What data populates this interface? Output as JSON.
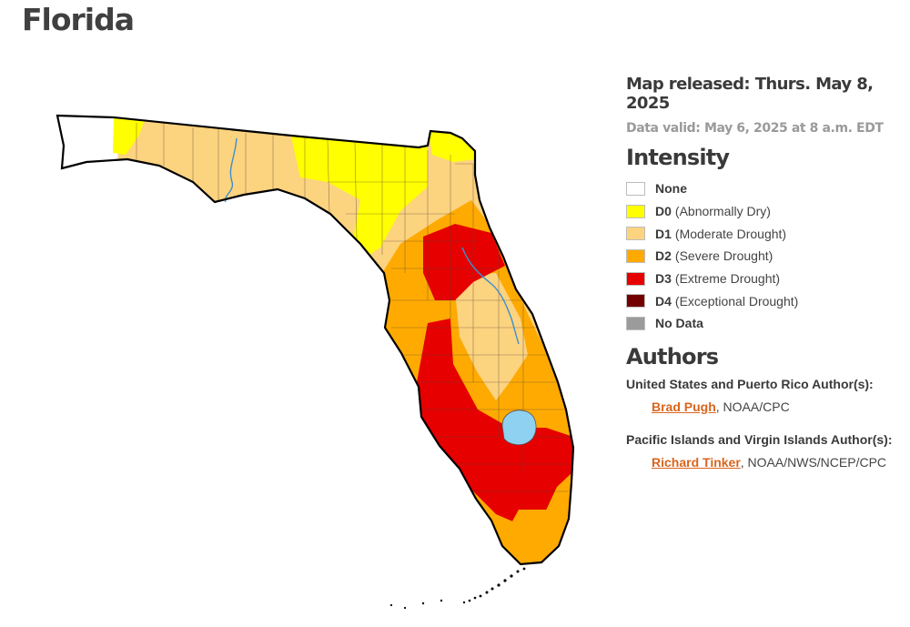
{
  "page": {
    "title": "Florida"
  },
  "map": {
    "colors": {
      "none": "#ffffff",
      "d0": "#ffff00",
      "d1": "#fcd37f",
      "d2": "#ffaa00",
      "d3": "#e60000",
      "d4": "#730000",
      "no_data": "#9b9b9b",
      "water": "#8fd1f0",
      "river": "#3a8fd0"
    }
  },
  "info": {
    "released": "Map released: Thurs. May 8, 2025",
    "valid": "Data valid: May 6, 2025 at 8 a.m. EDT"
  },
  "intensity": {
    "heading": "Intensity",
    "items": [
      {
        "code": "",
        "label": "None",
        "color": "#ffffff"
      },
      {
        "code": "D0",
        "label": "(Abnormally Dry)",
        "color": "#ffff00"
      },
      {
        "code": "D1",
        "label": "(Moderate Drought)",
        "color": "#fcd37f"
      },
      {
        "code": "D2",
        "label": "(Severe Drought)",
        "color": "#ffaa00"
      },
      {
        "code": "D3",
        "label": "(Extreme Drought)",
        "color": "#e60000"
      },
      {
        "code": "D4",
        "label": "(Exceptional Drought)",
        "color": "#730000"
      },
      {
        "code": "",
        "label": "No Data",
        "color": "#9b9b9b"
      }
    ]
  },
  "authors": {
    "heading": "Authors",
    "us_heading": "United States and Puerto Rico Author(s):",
    "us_name": "Brad Pugh",
    "us_org": ", NOAA/CPC",
    "pi_heading": "Pacific Islands and Virgin Islands Author(s):",
    "pi_name": "Richard Tinker",
    "pi_org": ", NOAA/NWS/NCEP/CPC"
  }
}
